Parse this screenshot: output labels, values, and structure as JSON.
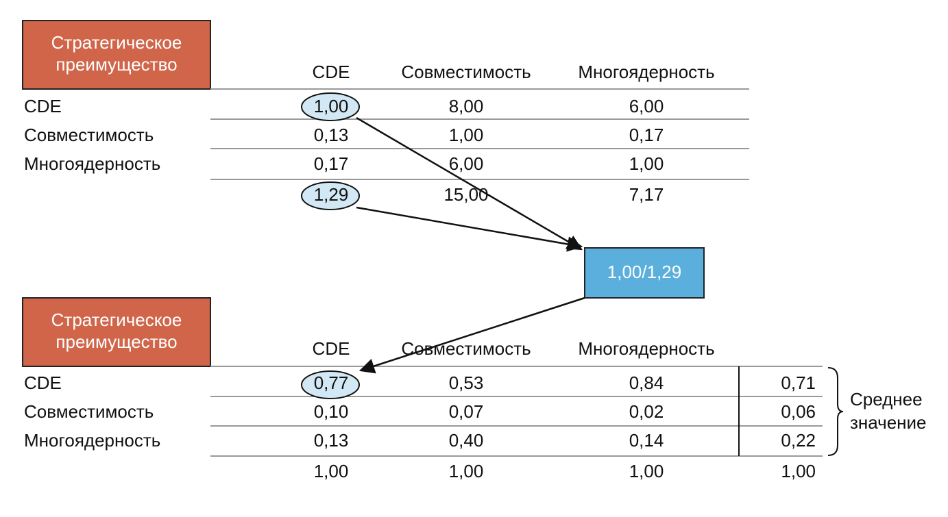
{
  "top": {
    "title": [
      "Стратегическое",
      "преимущество"
    ],
    "columns": [
      "CDE",
      "Совместимость",
      "Многоядерность"
    ],
    "rows": [
      {
        "label": "CDE",
        "values": [
          "1,00",
          "8,00",
          "6,00"
        ]
      },
      {
        "label": "Совместимость",
        "values": [
          "0,13",
          "1,00",
          "0,17"
        ]
      },
      {
        "label": "Многоядерность",
        "values": [
          "0,17",
          "6,00",
          "1,00"
        ]
      }
    ],
    "totals": [
      "1,29",
      "15,00",
      "7,17"
    ]
  },
  "formula": "1,00/1,29",
  "bottom": {
    "title": [
      "Стратегическое",
      "преимущество"
    ],
    "columns": [
      "CDE",
      "Совместимость",
      "Многоядерность"
    ],
    "rows": [
      {
        "label": "CDE",
        "values": [
          "0,77",
          "0,53",
          "0,84"
        ],
        "average": "0,71"
      },
      {
        "label": "Совместимость",
        "values": [
          "0,10",
          "0,07",
          "0,02"
        ],
        "average": "0,06"
      },
      {
        "label": "Многоядерность",
        "values": [
          "0,13",
          "0,40",
          "0,14"
        ],
        "average": "0,22"
      }
    ],
    "totals": [
      "1,00",
      "1,00",
      "1,00"
    ],
    "average_total": "1,00"
  },
  "average_label": [
    "Среднее",
    "значение"
  ]
}
